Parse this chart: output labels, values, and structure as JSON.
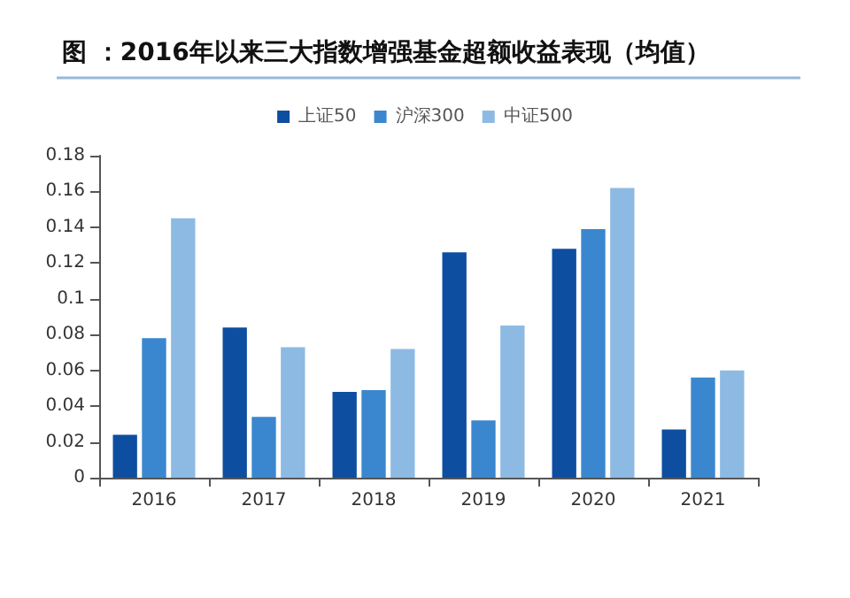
{
  "chart_data": {
    "type": "bar",
    "title": "图 ：2016年以来三大指数增强基金超额收益表现（均值）",
    "categories": [
      "2016",
      "2017",
      "2018",
      "2019",
      "2020",
      "2021"
    ],
    "series": [
      {
        "name": "上证50",
        "color": "#0d4ea0",
        "values": [
          0.024,
          0.084,
          0.048,
          0.126,
          0.128,
          0.027
        ]
      },
      {
        "name": "沪深300",
        "color": "#3a87cf",
        "values": [
          0.078,
          0.034,
          0.049,
          0.032,
          0.139,
          0.056
        ]
      },
      {
        "name": "中证500",
        "color": "#8dbae3",
        "values": [
          0.145,
          0.073,
          0.072,
          0.085,
          0.162,
          0.06
        ]
      }
    ],
    "ylim": [
      0,
      0.18
    ],
    "yticks": [
      0,
      0.02,
      0.04,
      0.06,
      0.08,
      0.1,
      0.12,
      0.14,
      0.16,
      0.18
    ],
    "grid": false,
    "legend": "top"
  }
}
